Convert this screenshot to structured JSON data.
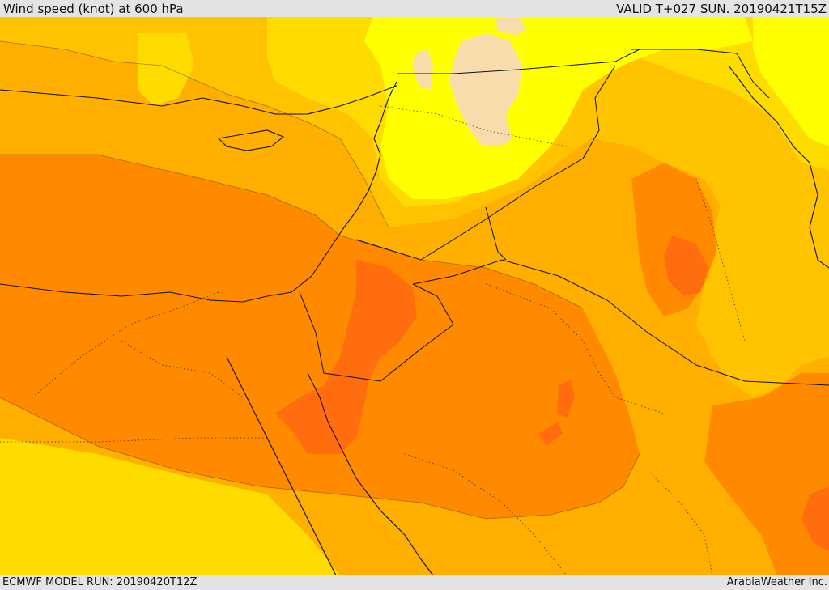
{
  "header": {
    "title": "Wind speed (knot) at 600 hPa",
    "valid_time": "VALID T+027 SUN. 20190421T15Z"
  },
  "footer": {
    "model_run": "ECMWF MODEL RUN: 20190420T12Z",
    "credit": "ArabiaWeather Inc."
  },
  "map": {
    "field": "wind speed",
    "level": "600 hPa",
    "units": "knot",
    "colors": {
      "band_1": "#FFDC00",
      "band_2": "#FFC300",
      "band_3": "#FFAF00",
      "band_4": "#FF8A00",
      "band_5": "#FF6D0F",
      "calm_max": "#FFFF00",
      "calm_core": "#F9DCAB",
      "land_line": "#111111"
    }
  }
}
